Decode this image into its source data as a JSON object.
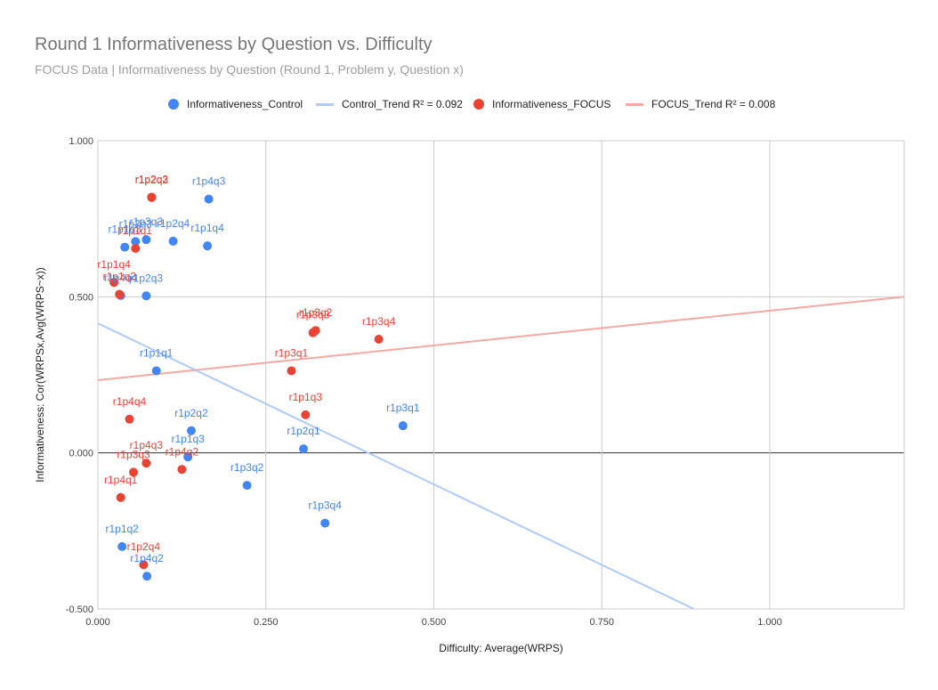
{
  "chart_data": {
    "type": "scatter",
    "title": "Round 1 Informativeness by Question vs. Difficulty",
    "subtitle": "FOCUS Data | Informativeness by Question (Round 1, Problem y, Question x)",
    "xlabel": "Difficulty: Average(WRPS)",
    "ylabel": "Informativeness: Cor(WRPSx,Avg(WRPS~x))",
    "xlim": [
      0,
      1.2
    ],
    "ylim": [
      -0.5,
      1.0
    ],
    "xticks": [
      "0.000",
      "0.250",
      "0.500",
      "0.750",
      "1.000"
    ],
    "yticks": [
      "-0.500",
      "0.000",
      "0.500",
      "1.000"
    ],
    "grid": true,
    "legend_position": "top",
    "series": [
      {
        "name": "Informativeness_Control",
        "color": "#4285f4",
        "points": [
          {
            "label": "r1p1q3",
            "x": 0.04,
            "y": 0.659
          },
          {
            "label": "r1p2q3",
            "x": 0.056,
            "y": 0.677
          },
          {
            "label": "r1p3q3",
            "x": 0.072,
            "y": 0.683
          },
          {
            "label": "r1p2q4",
            "x": 0.112,
            "y": 0.678
          },
          {
            "label": "r1p4q3",
            "x": 0.165,
            "y": 0.813
          },
          {
            "label": "r1p1q4",
            "x": 0.163,
            "y": 0.663
          },
          {
            "label": "r1p4q4",
            "x": 0.034,
            "y": 0.504
          },
          {
            "label": "r1p2q3",
            "x": 0.072,
            "y": 0.503
          },
          {
            "label": "r1p1q1",
            "x": 0.087,
            "y": 0.263
          },
          {
            "label": "r1p2q2",
            "x": 0.139,
            "y": 0.071
          },
          {
            "label": "r1p1q3",
            "x": 0.134,
            "y": -0.013
          },
          {
            "label": "r1p2q1",
            "x": 0.306,
            "y": 0.013
          },
          {
            "label": "r1p3q1",
            "x": 0.454,
            "y": 0.087
          },
          {
            "label": "r1p3q2",
            "x": 0.222,
            "y": -0.104
          },
          {
            "label": "r1p3q4",
            "x": 0.338,
            "y": -0.225
          },
          {
            "label": "r1p1q2",
            "x": 0.036,
            "y": -0.3
          },
          {
            "label": "r1p4q2",
            "x": 0.073,
            "y": -0.395
          }
        ]
      },
      {
        "name": "Control_Trend R² = 0.092",
        "color": "#aecbfa",
        "trend": {
          "x": [
            0.0,
            0.887
          ],
          "y": [
            0.415,
            -0.5
          ]
        }
      },
      {
        "name": "Informativeness_FOCUS",
        "color": "#ea4335",
        "points": [
          {
            "label": "r1p2q3",
            "x": 0.08,
            "y": 0.819
          },
          {
            "label": "r1p2q2",
            "x": 0.08,
            "y": 0.818
          },
          {
            "label": "r1p1q1",
            "x": 0.056,
            "y": 0.655
          },
          {
            "label": "r1p1q4",
            "x": 0.024,
            "y": 0.546
          },
          {
            "label": "r1p1q2",
            "x": 0.032,
            "y": 0.508
          },
          {
            "label": "r1p3q3",
            "x": 0.32,
            "y": 0.385
          },
          {
            "label": "r1p3q2",
            "x": 0.324,
            "y": 0.392
          },
          {
            "label": "r1p3q4",
            "x": 0.418,
            "y": 0.364
          },
          {
            "label": "r1p3q1",
            "x": 0.288,
            "y": 0.263
          },
          {
            "label": "r1p1q3",
            "x": 0.309,
            "y": 0.122
          },
          {
            "label": "r1p4q4",
            "x": 0.047,
            "y": 0.108
          },
          {
            "label": "r1p4q3",
            "x": 0.072,
            "y": -0.033
          },
          {
            "label": "r1p3q3",
            "x": 0.053,
            "y": -0.062
          },
          {
            "label": "r1p4q2",
            "x": 0.125,
            "y": -0.053
          },
          {
            "label": "r1p4q1",
            "x": 0.034,
            "y": -0.143
          },
          {
            "label": "r1p2q4",
            "x": 0.068,
            "y": -0.358
          }
        ]
      },
      {
        "name": "FOCUS_Trend R² = 0.008",
        "color": "#f4a9a3",
        "trend": {
          "x": [
            0.0,
            1.2
          ],
          "y": [
            0.233,
            0.5
          ]
        }
      }
    ]
  }
}
